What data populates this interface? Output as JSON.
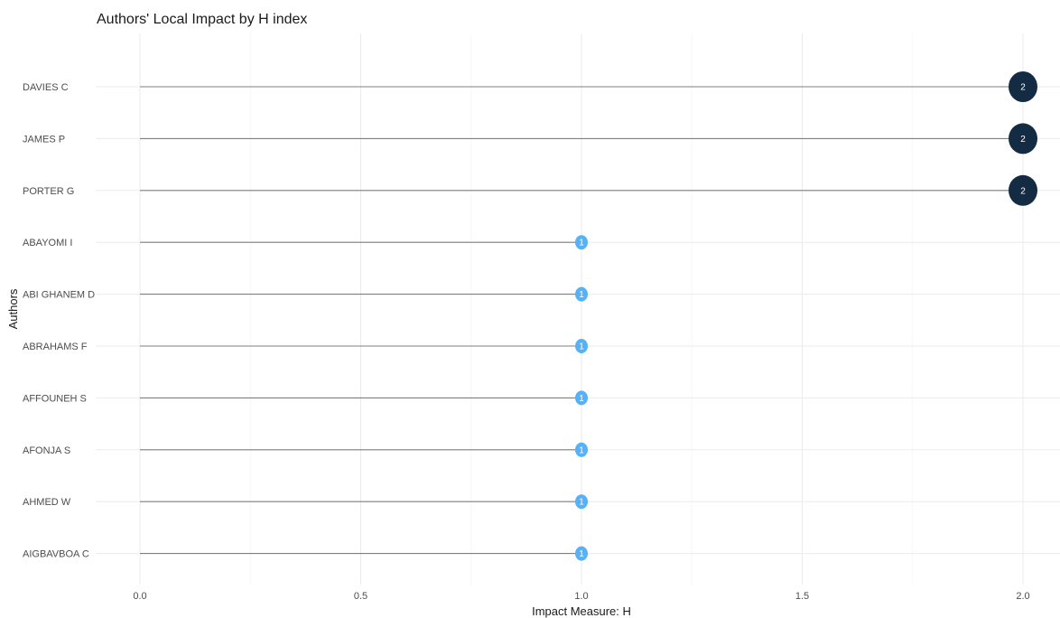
{
  "chart_data": {
    "type": "lollipop",
    "title": "Authors' Local Impact by H index",
    "xlabel": "Impact Measure: H",
    "ylabel": "Authors",
    "xlim": [
      0,
      2
    ],
    "x_ticks": [
      "0.0",
      "0.5",
      "1.0",
      "1.5",
      "2.0"
    ],
    "grid": true,
    "categories": [
      "DAVIES C",
      "JAMES P",
      "PORTER G",
      "ABAYOMI I",
      "ABI GHANEM D",
      "ABRAHAMS F",
      "AFFOUNEH S",
      "AFONJA S",
      "AHMED W",
      "AIGBAVBOA C"
    ],
    "values": [
      2,
      2,
      2,
      1,
      1,
      1,
      1,
      1,
      1,
      1
    ],
    "point_labels": [
      "2",
      "2",
      "2",
      "1",
      "1",
      "1",
      "1",
      "1",
      "1",
      "1"
    ],
    "colors": {
      "high": "#132b43",
      "low": "#56b1f7",
      "segment": "#7f7f7f",
      "grid": "#ebebeb"
    }
  }
}
